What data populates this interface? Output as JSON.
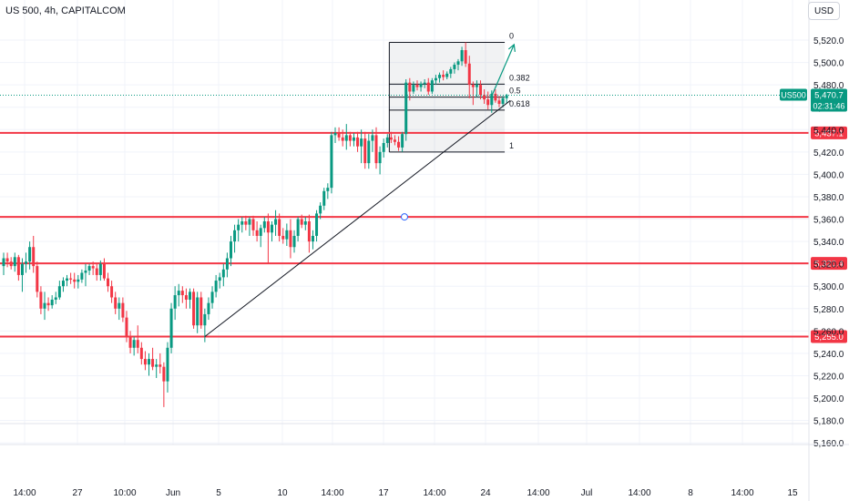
{
  "header": {
    "title": "US 500, 4h, CAPITALCOM",
    "currency": "USD"
  },
  "colors": {
    "up": "#089981",
    "down": "#f23645",
    "level": "#f23645",
    "grid": "#e0e3eb",
    "text": "#131722"
  },
  "price_label": {
    "symbol": "US500",
    "price": "5,470.7",
    "countdown": "02:31:46",
    "value": 5470.7
  },
  "chart_data": {
    "type": "candlestick",
    "title": "US 500, 4h, CAPITALCOM",
    "y_axis": {
      "ticks": [
        "5,520.0",
        "5,500.0",
        "5,480.0",
        "5,460.0",
        "5,440.0",
        "5,420.0",
        "5,400.0",
        "5,380.0",
        "5,360.0",
        "5,340.0",
        "5,320.0",
        "5,300.0",
        "5,280.0",
        "5,260.0",
        "5,240.0",
        "5,220.0",
        "5,200.0",
        "5,180.0",
        "5,160.0"
      ],
      "tick_values": [
        5520,
        5500,
        5480,
        5460,
        5440,
        5420,
        5400,
        5380,
        5360,
        5340,
        5320,
        5300,
        5280,
        5260,
        5240,
        5220,
        5200,
        5180,
        5160
      ],
      "range": [
        5157,
        5532
      ]
    },
    "x_axis": {
      "ticks": [
        "14:00",
        "27",
        "10:00",
        "Jun",
        "5",
        "10",
        "14:00",
        "17",
        "14:00",
        "24",
        "14:00",
        "Jul",
        "14:00",
        "8",
        "14:00",
        "15"
      ],
      "range": [
        0,
        226
      ]
    },
    "horizontal_levels": [
      {
        "value": 5437.1,
        "label": "5,437.1"
      },
      {
        "value": 5362.0,
        "label": "",
        "handle": true
      },
      {
        "value": 5320.4,
        "label": "5,320.4"
      },
      {
        "value": 5255.0,
        "label": "5,255.0"
      }
    ],
    "fibonacci": {
      "start": 5518,
      "end": 5420,
      "levels": [
        {
          "ratio": 0,
          "label": "0",
          "value": 5518
        },
        {
          "ratio": 0.382,
          "label": "0.382",
          "value": 5480.6
        },
        {
          "ratio": 0.5,
          "label": "0.5",
          "value": 5469
        },
        {
          "ratio": 0.618,
          "label": "0.618",
          "value": 5457.4
        },
        {
          "ratio": 1,
          "label": "1",
          "value": 5420
        }
      ],
      "x_start": 104,
      "x_end": 134
    },
    "trendline": {
      "from": [
        54,
        5255
      ],
      "to": [
        136,
        5466
      ]
    },
    "projection_arrow": {
      "from": [
        131,
        5470
      ],
      "to": [
        137,
        5516
      ]
    },
    "candles": [
      [
        0,
        5318,
        5330,
        5310,
        5325
      ],
      [
        1,
        5325,
        5330,
        5317,
        5322
      ],
      [
        2,
        5322,
        5326,
        5315,
        5318
      ],
      [
        3,
        5318,
        5330,
        5313,
        5326
      ],
      [
        4,
        5326,
        5328,
        5305,
        5310
      ],
      [
        5,
        5310,
        5325,
        5295,
        5320
      ],
      [
        6,
        5320,
        5330,
        5312,
        5322
      ],
      [
        7,
        5322,
        5340,
        5315,
        5335
      ],
      [
        8,
        5335,
        5345,
        5312,
        5318
      ],
      [
        9,
        5318,
        5322,
        5290,
        5295
      ],
      [
        10,
        5295,
        5300,
        5275,
        5280
      ],
      [
        11,
        5280,
        5295,
        5270,
        5285
      ],
      [
        12,
        5285,
        5290,
        5278,
        5283
      ],
      [
        13,
        5283,
        5292,
        5280,
        5288
      ],
      [
        14,
        5288,
        5295,
        5284,
        5290
      ],
      [
        15,
        5290,
        5305,
        5288,
        5300
      ],
      [
        16,
        5300,
        5308,
        5295,
        5305
      ],
      [
        17,
        5305,
        5310,
        5300,
        5307
      ],
      [
        18,
        5307,
        5312,
        5302,
        5306
      ],
      [
        19,
        5306,
        5312,
        5298,
        5304
      ],
      [
        20,
        5304,
        5310,
        5298,
        5306
      ],
      [
        21,
        5306,
        5315,
        5303,
        5312
      ],
      [
        22,
        5312,
        5320,
        5300,
        5314
      ],
      [
        23,
        5314,
        5320,
        5310,
        5318
      ],
      [
        24,
        5318,
        5322,
        5310,
        5316
      ],
      [
        25,
        5316,
        5320,
        5305,
        5310
      ],
      [
        26,
        5310,
        5323,
        5305,
        5320
      ],
      [
        27,
        5320,
        5325,
        5305,
        5307
      ],
      [
        28,
        5307,
        5312,
        5295,
        5300
      ],
      [
        29,
        5300,
        5305,
        5285,
        5290
      ],
      [
        30,
        5290,
        5295,
        5275,
        5280
      ],
      [
        31,
        5280,
        5290,
        5270,
        5285
      ],
      [
        32,
        5285,
        5290,
        5268,
        5272
      ],
      [
        33,
        5272,
        5278,
        5250,
        5255
      ],
      [
        34,
        5255,
        5260,
        5240,
        5245
      ],
      [
        35,
        5245,
        5255,
        5238,
        5252
      ],
      [
        36,
        5252,
        5265,
        5240,
        5245
      ],
      [
        37,
        5245,
        5250,
        5230,
        5235
      ],
      [
        38,
        5235,
        5242,
        5225,
        5230
      ],
      [
        39,
        5230,
        5240,
        5220,
        5235
      ],
      [
        40,
        5235,
        5245,
        5225,
        5228
      ],
      [
        41,
        5228,
        5235,
        5218,
        5230
      ],
      [
        42,
        5230,
        5240,
        5222,
        5228
      ],
      [
        43,
        5228,
        5232,
        5192,
        5215
      ],
      [
        44,
        5215,
        5250,
        5205,
        5245
      ],
      [
        45,
        5245,
        5285,
        5240,
        5280
      ],
      [
        46,
        5280,
        5300,
        5270,
        5292
      ],
      [
        47,
        5292,
        5302,
        5282,
        5296
      ],
      [
        48,
        5296,
        5300,
        5285,
        5292
      ],
      [
        49,
        5292,
        5298,
        5280,
        5288
      ],
      [
        50,
        5288,
        5298,
        5280,
        5295
      ],
      [
        51,
        5295,
        5298,
        5262,
        5265
      ],
      [
        52,
        5265,
        5295,
        5258,
        5290
      ],
      [
        53,
        5290,
        5295,
        5262,
        5265
      ],
      [
        54,
        5265,
        5280,
        5250,
        5275
      ],
      [
        55,
        5275,
        5290,
        5270,
        5285
      ],
      [
        56,
        5285,
        5300,
        5280,
        5295
      ],
      [
        57,
        5295,
        5310,
        5290,
        5305
      ],
      [
        58,
        5305,
        5312,
        5298,
        5308
      ],
      [
        59,
        5308,
        5320,
        5300,
        5315
      ],
      [
        60,
        5315,
        5330,
        5308,
        5325
      ],
      [
        61,
        5325,
        5345,
        5318,
        5340
      ],
      [
        62,
        5340,
        5355,
        5330,
        5350
      ],
      [
        63,
        5350,
        5360,
        5340,
        5355
      ],
      [
        64,
        5355,
        5362,
        5348,
        5358
      ],
      [
        65,
        5358,
        5363,
        5350,
        5355
      ],
      [
        66,
        5355,
        5362,
        5345,
        5360
      ],
      [
        67,
        5360,
        5363,
        5345,
        5350
      ],
      [
        68,
        5350,
        5358,
        5340,
        5345
      ],
      [
        69,
        5345,
        5355,
        5335,
        5352
      ],
      [
        70,
        5352,
        5362,
        5348,
        5358
      ],
      [
        71,
        5358,
        5365,
        5320,
        5348
      ],
      [
        72,
        5348,
        5358,
        5340,
        5355
      ],
      [
        73,
        5355,
        5368,
        5345,
        5360
      ],
      [
        74,
        5360,
        5365,
        5340,
        5345
      ],
      [
        75,
        5345,
        5352,
        5338,
        5342
      ],
      [
        76,
        5342,
        5356,
        5336,
        5350
      ],
      [
        77,
        5350,
        5360,
        5325,
        5335
      ],
      [
        78,
        5335,
        5350,
        5330,
        5345
      ],
      [
        79,
        5345,
        5362,
        5340,
        5360
      ],
      [
        80,
        5360,
        5364,
        5352,
        5355
      ],
      [
        81,
        5355,
        5362,
        5350,
        5358
      ],
      [
        82,
        5358,
        5364,
        5330,
        5340
      ],
      [
        83,
        5340,
        5350,
        5333,
        5345
      ],
      [
        84,
        5345,
        5368,
        5340,
        5365
      ],
      [
        85,
        5365,
        5375,
        5360,
        5372
      ],
      [
        86,
        5372,
        5388,
        5368,
        5385
      ],
      [
        87,
        5385,
        5392,
        5378,
        5388
      ],
      [
        88,
        5388,
        5438,
        5383,
        5435
      ],
      [
        89,
        5435,
        5442,
        5428,
        5437
      ],
      [
        90,
        5437,
        5442,
        5430,
        5433
      ],
      [
        91,
        5433,
        5440,
        5425,
        5430
      ],
      [
        92,
        5430,
        5445,
        5422,
        5435
      ],
      [
        93,
        5435,
        5438,
        5425,
        5430
      ],
      [
        94,
        5430,
        5437,
        5425,
        5433
      ],
      [
        95,
        5433,
        5438,
        5420,
        5425
      ],
      [
        96,
        5425,
        5440,
        5410,
        5432
      ],
      [
        97,
        5432,
        5438,
        5405,
        5410
      ],
      [
        98,
        5410,
        5436,
        5405,
        5430
      ],
      [
        99,
        5430,
        5440,
        5420,
        5435
      ],
      [
        100,
        5435,
        5442,
        5405,
        5410
      ],
      [
        101,
        5410,
        5425,
        5400,
        5420
      ],
      [
        102,
        5420,
        5432,
        5415,
        5428
      ],
      [
        103,
        5428,
        5436,
        5424,
        5433
      ],
      [
        104,
        5433,
        5438,
        5428,
        5431
      ],
      [
        105,
        5431,
        5435,
        5426,
        5429
      ],
      [
        106,
        5429,
        5434,
        5421,
        5424
      ],
      [
        107,
        5424,
        5438,
        5420,
        5436
      ],
      [
        108,
        5436,
        5485,
        5430,
        5482
      ],
      [
        109,
        5482,
        5486,
        5466,
        5474
      ],
      [
        110,
        5474,
        5483,
        5472,
        5480
      ],
      [
        111,
        5480,
        5484,
        5475,
        5478
      ],
      [
        112,
        5478,
        5483,
        5474,
        5481
      ],
      [
        113,
        5481,
        5485,
        5477,
        5482
      ],
      [
        114,
        5482,
        5486,
        5471,
        5474
      ],
      [
        115,
        5474,
        5486,
        5472,
        5484
      ],
      [
        116,
        5484,
        5489,
        5480,
        5486
      ],
      [
        117,
        5486,
        5491,
        5482,
        5489
      ],
      [
        118,
        5489,
        5493,
        5484,
        5487
      ],
      [
        119,
        5487,
        5492,
        5485,
        5490
      ],
      [
        120,
        5490,
        5496,
        5486,
        5494
      ],
      [
        121,
        5494,
        5500,
        5490,
        5498
      ],
      [
        122,
        5498,
        5503,
        5493,
        5501
      ],
      [
        123,
        5501,
        5514,
        5497,
        5511
      ],
      [
        124,
        5511,
        5518,
        5496,
        5499
      ],
      [
        125,
        5499,
        5506,
        5468,
        5480
      ],
      [
        126,
        5480,
        5483,
        5462,
        5478
      ],
      [
        127,
        5478,
        5484,
        5469,
        5480
      ],
      [
        128,
        5480,
        5484,
        5467,
        5471
      ],
      [
        129,
        5471,
        5476,
        5463,
        5467
      ],
      [
        130,
        5467,
        5474,
        5458,
        5462
      ],
      [
        131,
        5462,
        5475,
        5455,
        5472
      ],
      [
        132,
        5472,
        5476,
        5464,
        5466
      ],
      [
        133,
        5466,
        5470,
        5460,
        5463
      ],
      [
        134,
        5463,
        5470,
        5460,
        5468
      ],
      [
        135,
        5468,
        5472,
        5464,
        5470.7
      ]
    ]
  }
}
